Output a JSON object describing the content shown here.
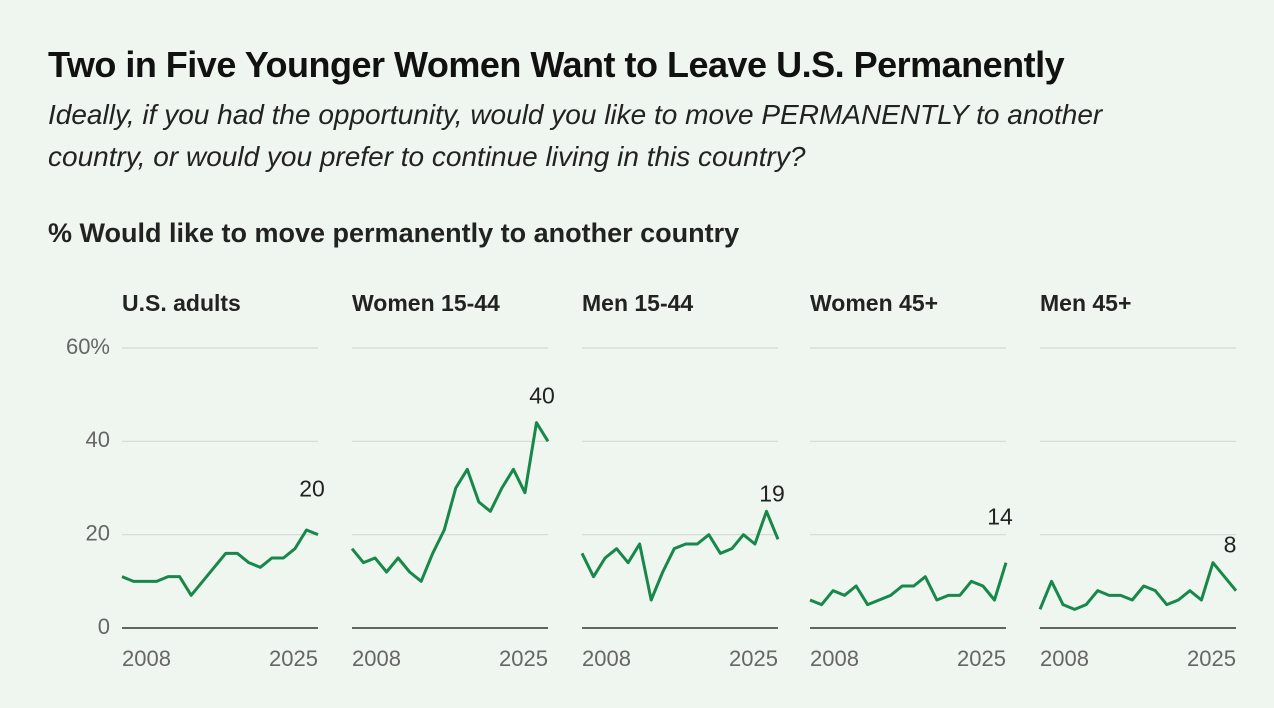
{
  "title": "Two in Five Younger Women Want to Leave U.S. Permanently",
  "subtitle": "Ideally, if you had the opportunity, would you like to move PERMANENTLY to another country, or would you prefer to continue living in this country?",
  "axis_title": "% Would like to move permanently to another country",
  "chart_data": [
    {
      "type": "line",
      "title": "U.S. adults",
      "color": "#17884a",
      "x": [
        2008,
        2009,
        2010,
        2011,
        2012,
        2013,
        2014,
        2015,
        2016,
        2017,
        2018,
        2019,
        2020,
        2021,
        2022,
        2023,
        2024,
        2025
      ],
      "values": [
        11,
        10,
        10,
        10,
        11,
        11,
        7,
        10,
        13,
        16,
        16,
        14,
        13,
        15,
        15,
        17,
        21,
        20
      ],
      "xlim": [
        2008,
        2025
      ],
      "xticks": [
        2008,
        2025
      ],
      "ylim": [
        0,
        60
      ],
      "yticks": [
        0,
        20,
        40,
        {
          "value": 60,
          "label": "60%"
        }
      ],
      "grid": true
    },
    {
      "type": "line",
      "title": "Women 15-44",
      "color": "#17884a",
      "x": [
        2008,
        2009,
        2010,
        2011,
        2012,
        2013,
        2014,
        2015,
        2016,
        2017,
        2018,
        2019,
        2020,
        2021,
        2022,
        2023,
        2024,
        2025
      ],
      "values": [
        17,
        14,
        15,
        12,
        15,
        12,
        10,
        16,
        21,
        30,
        34,
        27,
        25,
        30,
        34,
        29,
        44,
        40
      ],
      "xlim": [
        2008,
        2025
      ],
      "xticks": [
        2008,
        2025
      ],
      "ylim": [
        0,
        60
      ],
      "yticks": [
        0,
        20,
        40,
        60
      ],
      "grid": true
    },
    {
      "type": "line",
      "title": "Men 15-44",
      "color": "#17884a",
      "x": [
        2008,
        2009,
        2010,
        2011,
        2012,
        2013,
        2014,
        2015,
        2016,
        2017,
        2018,
        2019,
        2020,
        2021,
        2022,
        2023,
        2024,
        2025
      ],
      "values": [
        16,
        11,
        15,
        17,
        14,
        18,
        6,
        12,
        17,
        18,
        18,
        20,
        16,
        17,
        20,
        18,
        25,
        19
      ],
      "xlim": [
        2008,
        2025
      ],
      "xticks": [
        2008,
        2025
      ],
      "ylim": [
        0,
        60
      ],
      "yticks": [
        0,
        20,
        40,
        60
      ],
      "grid": true
    },
    {
      "type": "line",
      "title": "Women 45+",
      "color": "#17884a",
      "x": [
        2008,
        2009,
        2010,
        2011,
        2012,
        2013,
        2014,
        2015,
        2016,
        2017,
        2018,
        2019,
        2020,
        2021,
        2022,
        2023,
        2024,
        2025
      ],
      "values": [
        6,
        5,
        8,
        7,
        9,
        5,
        6,
        7,
        9,
        9,
        11,
        6,
        7,
        7,
        10,
        9,
        6,
        14
      ],
      "xlim": [
        2008,
        2025
      ],
      "xticks": [
        2008,
        2025
      ],
      "ylim": [
        0,
        60
      ],
      "yticks": [
        0,
        20,
        40,
        60
      ],
      "grid": true
    },
    {
      "type": "line",
      "title": "Men 45+",
      "color": "#17884a",
      "x": [
        2008,
        2009,
        2010,
        2011,
        2012,
        2013,
        2014,
        2015,
        2016,
        2017,
        2018,
        2019,
        2020,
        2021,
        2022,
        2023,
        2024,
        2025
      ],
      "values": [
        4,
        10,
        5,
        4,
        5,
        8,
        7,
        7,
        6,
        9,
        8,
        5,
        6,
        8,
        6,
        14,
        11,
        8
      ],
      "xlim": [
        2008,
        2025
      ],
      "xticks": [
        2008,
        2025
      ],
      "ylim": [
        0,
        60
      ],
      "yticks": [
        0,
        20,
        40,
        60
      ],
      "grid": true
    }
  ]
}
